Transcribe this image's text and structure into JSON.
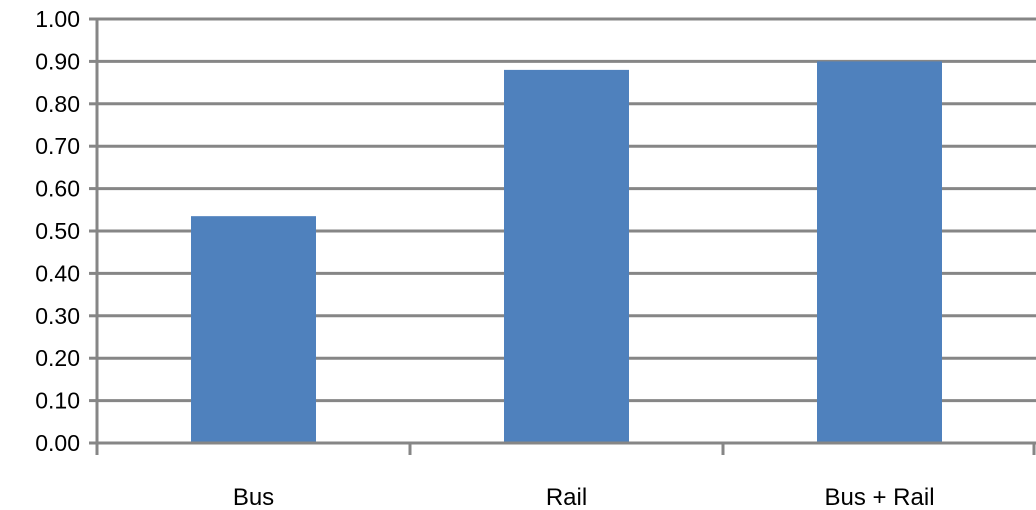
{
  "chart_data": {
    "type": "bar",
    "title": "",
    "xlabel": "",
    "ylabel": "",
    "categories": [
      "Bus",
      "Rail",
      "Bus + Rail"
    ],
    "series": [
      {
        "values": [
          0.535,
          0.88,
          0.9
        ]
      }
    ],
    "ylim": [
      0,
      1
    ],
    "yticks": [
      "0.00",
      "0.10",
      "0.20",
      "0.30",
      "0.40",
      "0.50",
      "0.60",
      "0.70",
      "0.80",
      "0.90",
      "1.00"
    ],
    "grid": true,
    "legend": "none",
    "colors": {
      "bar": "#4f81bd",
      "grid": "#868686",
      "axis": "#868686"
    }
  }
}
